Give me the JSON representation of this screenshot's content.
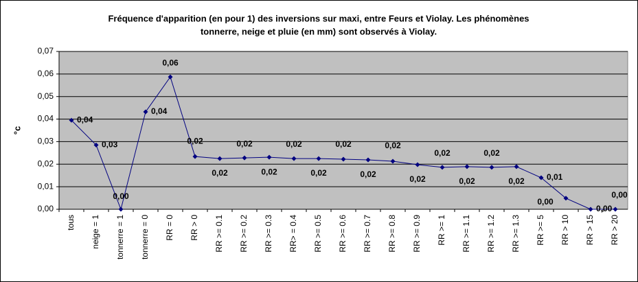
{
  "chart_data": {
    "type": "line",
    "title": [
      "Fréquence d'apparition (en pour 1) des inversions sur maxi, entre Feurs et Violay. Les phénomènes",
      "tonnerre, neige et pluie (en mm) sont observés à Violay."
    ],
    "y_label": "°c",
    "categories": [
      "tous",
      "neige = 1",
      "tonnerre = 1",
      "tonnerre = 0",
      "RR = 0",
      "RR > 0",
      "RR >= 0.1",
      "RR >= 0.2",
      "RR >= 0.3",
      "RR> = 0.4",
      "RR >= 0.5",
      "RR >= 0.6",
      "RR >= 0.7",
      "RR >= 0.8",
      "RR >= 0.9",
      "RR >= 1",
      "RR >= 1.1",
      "RR >= 1.2",
      "RR >= 1.3",
      "RR >= 5",
      "RR > 10",
      "RR > 15",
      "RR > 20"
    ],
    "values": [
      0.0395,
      0.0285,
      0,
      0.0432,
      0.0587,
      0.0234,
      0.0225,
      0.0228,
      0.0231,
      0.0225,
      0.0225,
      0.0222,
      0.0219,
      0.0213,
      0.0198,
      0.0186,
      0.0189,
      0.0186,
      0.0189,
      0.014,
      0.0049,
      0,
      0
    ],
    "value_labels": [
      "0,04",
      "0,03",
      "0,00",
      "0,04",
      "0,06",
      "0,02",
      "0,02",
      "0,02",
      "0,02",
      "0,02",
      "0,02",
      "0,02",
      "0,02",
      "0,02",
      "0,02",
      "0,02",
      "0,02",
      "0,02",
      "0,02",
      "0,01",
      "0,00",
      "0,00",
      "0,00"
    ],
    "color": "#000080",
    "ylim": [
      0,
      0.07
    ],
    "yticks": [
      {
        "value": 0,
        "label": "0,00"
      },
      {
        "value": 0.01,
        "label": "0,01"
      },
      {
        "value": 0.02,
        "label": "0,02"
      },
      {
        "value": 0.03,
        "label": "0,03"
      },
      {
        "value": 0.04,
        "label": "0,04"
      },
      {
        "value": 0.05,
        "label": "0,05"
      },
      {
        "value": 0.06,
        "label": "0,06"
      },
      {
        "value": 0.07,
        "label": "0,07"
      }
    ],
    "grid": true
  }
}
